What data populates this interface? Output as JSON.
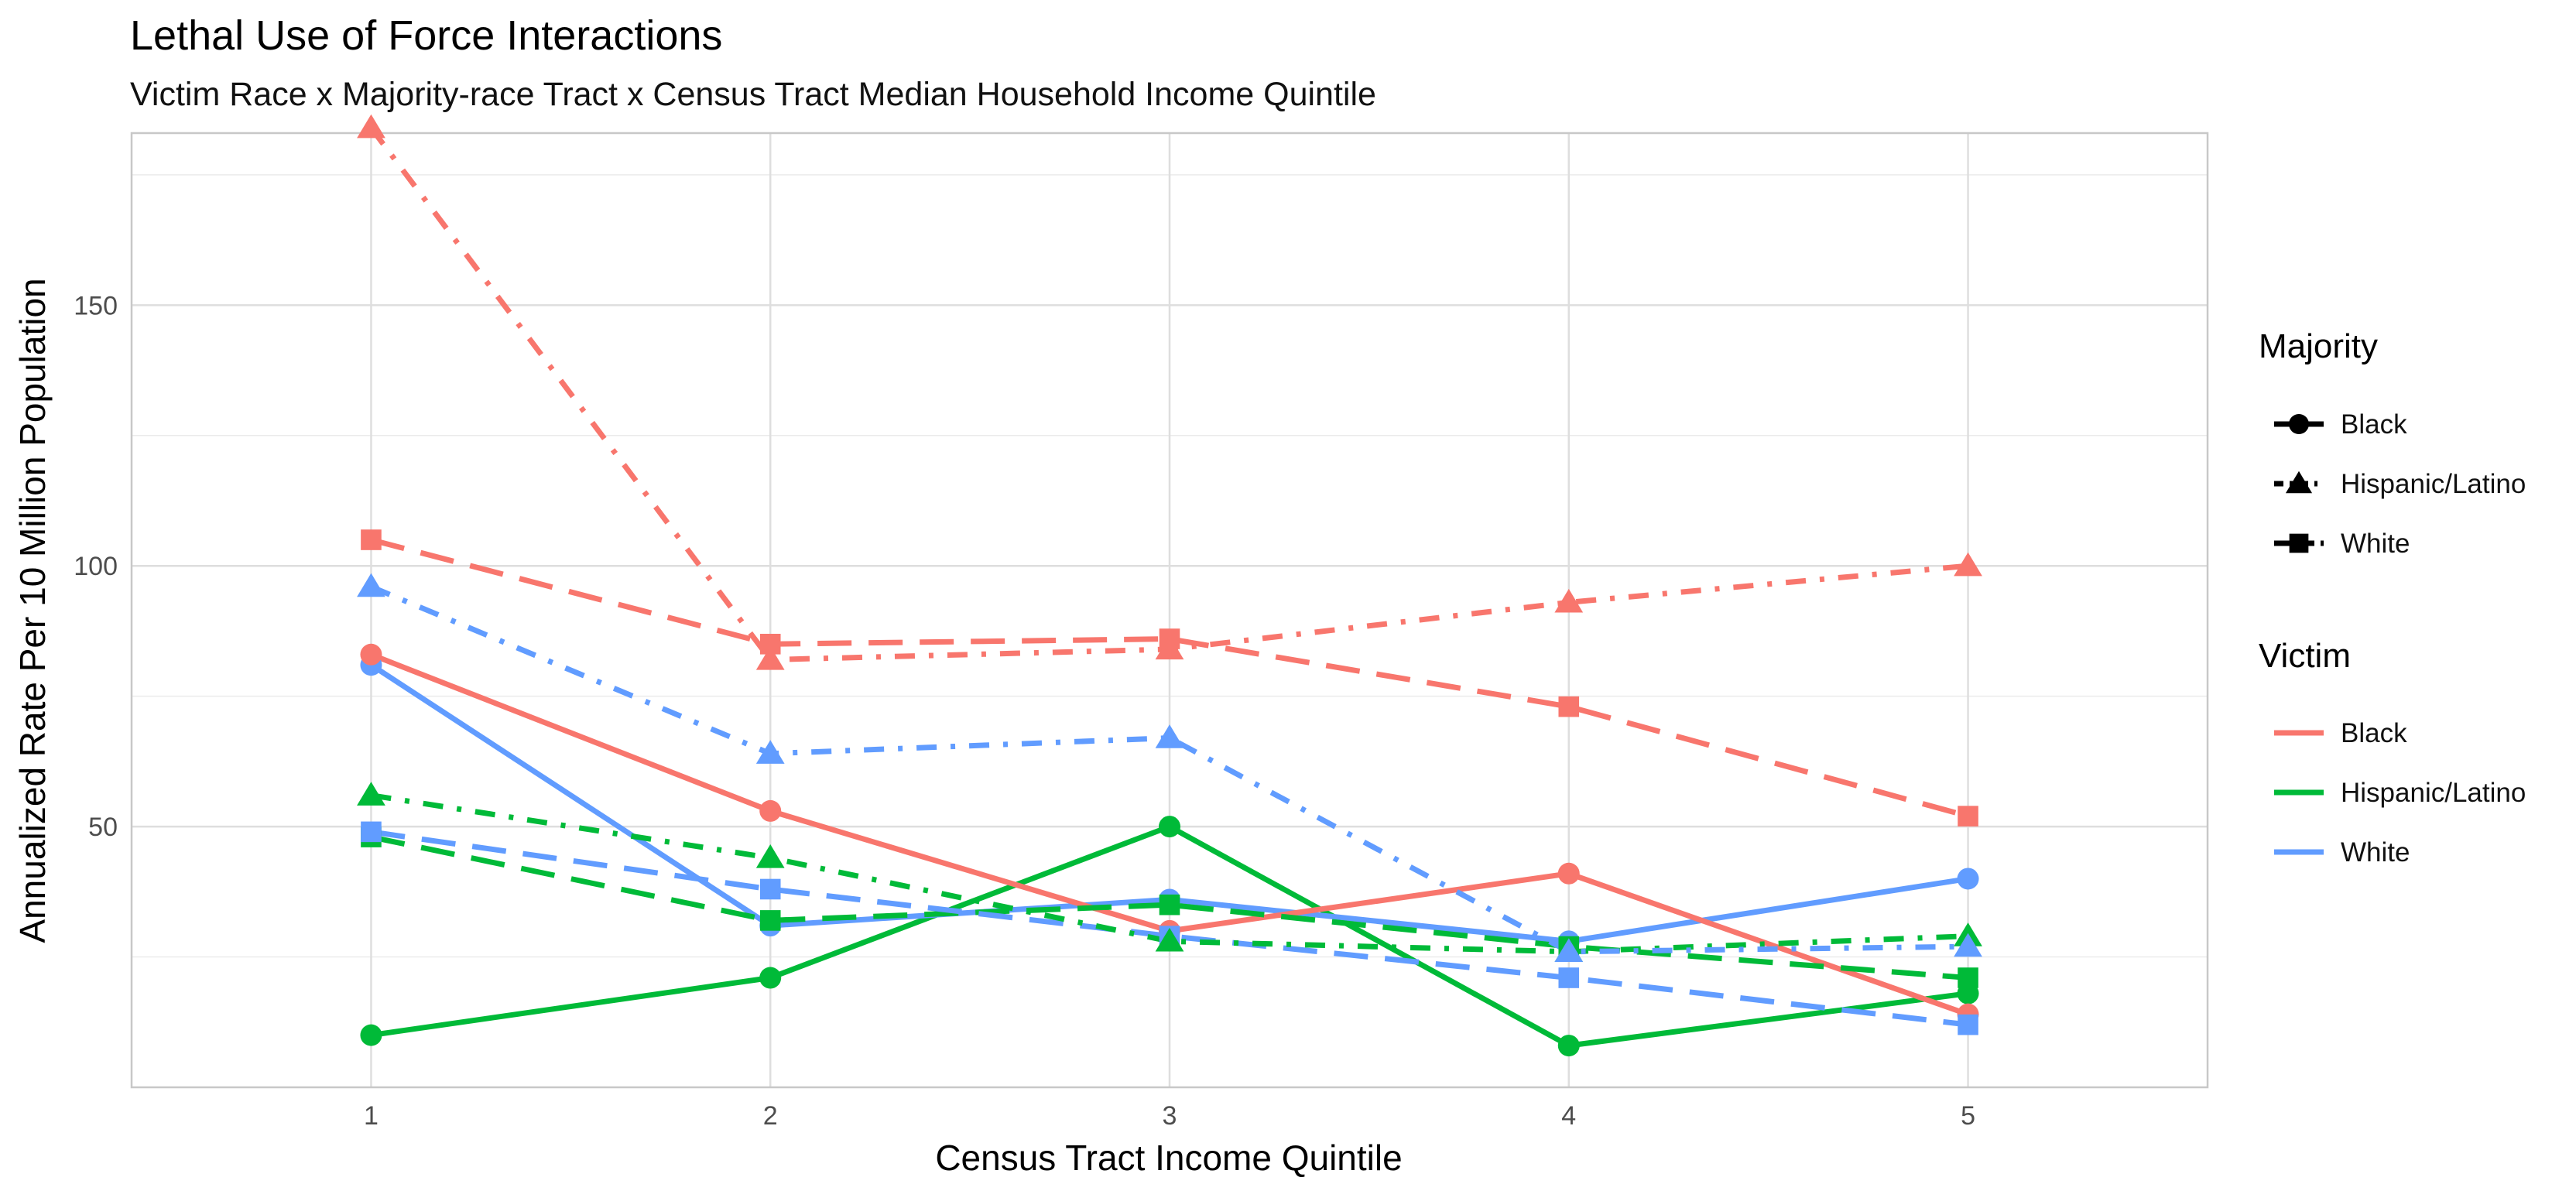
{
  "chart_data": {
    "type": "line",
    "title": "Lethal Use of Force Interactions",
    "subtitle": "Victim Race x Majority-race Tract x Census Tract Median Household Income Quintile",
    "xlabel": "Census Tract Income Quintile",
    "ylabel": "Annualized Rate Per 10 Million Population",
    "x": [
      1,
      2,
      3,
      4,
      5
    ],
    "xlim": [
      0.4,
      5.6
    ],
    "ylim": [
      0,
      183
    ],
    "y_ticks": [
      50,
      100,
      150
    ],
    "grid": true,
    "legend_position": "right",
    "colors": {
      "Black": "#F8766D",
      "Hispanic/Latino": "#00BA38",
      "White": "#619CFF"
    },
    "legends": [
      {
        "title": "Majority",
        "entries": [
          {
            "label": "Black",
            "shape": "circle",
            "linetype": "solid"
          },
          {
            "label": "Hispanic/Latino",
            "shape": "triangle",
            "linetype": "dotdash"
          },
          {
            "label": "White",
            "shape": "square",
            "linetype": "longdash"
          }
        ]
      },
      {
        "title": "Victim",
        "entries": [
          {
            "label": "Black"
          },
          {
            "label": "Hispanic/Latino"
          },
          {
            "label": "White"
          }
        ]
      }
    ],
    "series": [
      {
        "victim": "Black",
        "majority": "Black",
        "values": [
          83,
          53,
          30,
          41,
          14
        ]
      },
      {
        "victim": "Black",
        "majority": "Hispanic/Latino",
        "values": [
          184,
          82,
          84,
          93,
          100
        ]
      },
      {
        "victim": "Black",
        "majority": "White",
        "values": [
          105,
          85,
          86,
          73,
          52
        ]
      },
      {
        "victim": "Hispanic/Latino",
        "majority": "Black",
        "values": [
          10,
          21,
          50,
          8,
          18
        ]
      },
      {
        "victim": "Hispanic/Latino",
        "majority": "Hispanic/Latino",
        "values": [
          56,
          44,
          28,
          26,
          29
        ]
      },
      {
        "victim": "Hispanic/Latino",
        "majority": "White",
        "values": [
          48,
          32,
          35,
          27,
          21
        ]
      },
      {
        "victim": "White",
        "majority": "Black",
        "values": [
          81,
          31,
          36,
          28,
          40
        ]
      },
      {
        "victim": "White",
        "majority": "Hispanic/Latino",
        "values": [
          96,
          64,
          67,
          26,
          27
        ]
      },
      {
        "victim": "White",
        "majority": "White",
        "values": [
          49,
          38,
          29,
          21,
          12
        ]
      }
    ]
  }
}
